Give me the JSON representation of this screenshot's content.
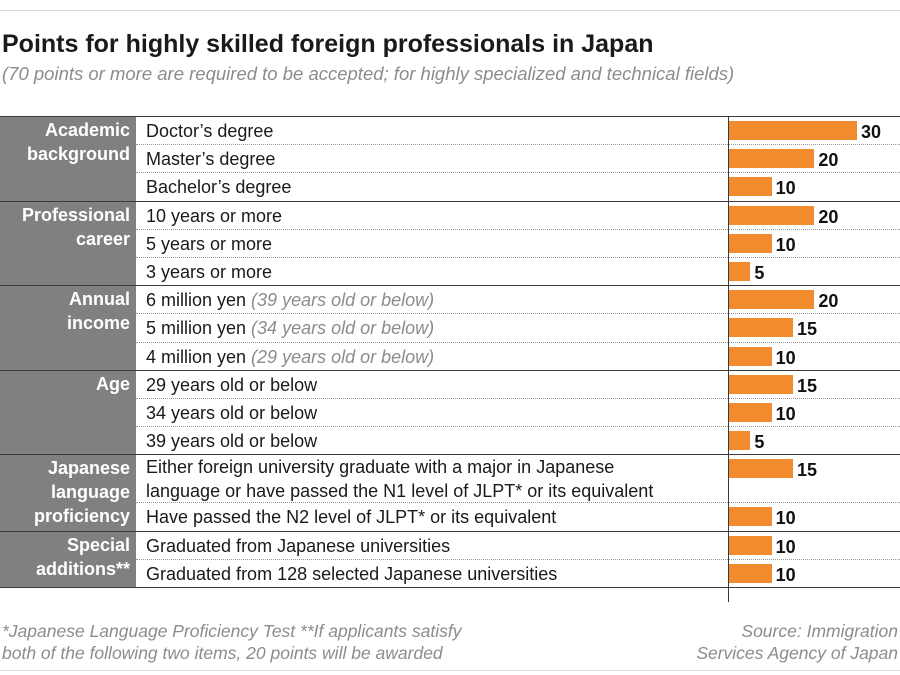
{
  "title": "Points for highly skilled foreign professionals in Japan",
  "subtitle": "(70 points or more are required to be accepted; for highly specialized and technical fields)",
  "footnote": {
    "line1": "*Japanese Language Proficiency Test  **If applicants satisfy",
    "line2": "both of the following two items, 20 points will be awarded"
  },
  "source": {
    "line1": "Source: Immigration",
    "line2": "Services Agency of Japan"
  },
  "colors": {
    "bar": "#f28a2e",
    "category_bg": "#808080"
  },
  "chart_data": {
    "type": "bar",
    "orientation": "horizontal",
    "xlim": [
      0,
      30
    ],
    "groups": [
      {
        "category": [
          "Academic",
          "background"
        ],
        "rows": [
          {
            "label": "Doctor’s degree",
            "value": 30
          },
          {
            "label": "Master’s degree",
            "value": 20
          },
          {
            "label": "Bachelor’s degree",
            "value": 10
          }
        ]
      },
      {
        "category": [
          "Professional",
          "career"
        ],
        "rows": [
          {
            "label": "10 years or more",
            "value": 20
          },
          {
            "label": "5 years or more",
            "value": 10
          },
          {
            "label": "3 years or more",
            "value": 5
          }
        ]
      },
      {
        "category": [
          "Annual",
          "income"
        ],
        "rows": [
          {
            "label": "6 million yen",
            "note": "(39 years old or below)",
            "value": 20
          },
          {
            "label": "5 million yen",
            "note": "(34 years old or below)",
            "value": 15
          },
          {
            "label": "4 million yen",
            "note": "(29 years old or below)",
            "value": 10
          }
        ]
      },
      {
        "category": [
          "Age"
        ],
        "rows": [
          {
            "label": "29 years old or below",
            "value": 15
          },
          {
            "label": "34 years old or below",
            "value": 10
          },
          {
            "label": "39 years old or below",
            "value": 5
          }
        ]
      },
      {
        "category": [
          "Japanese",
          "language",
          "proficiency"
        ],
        "rows": [
          {
            "label": "Either foreign university graduate with a major in Japanese",
            "label2": "language or have passed the N1 level of JLPT* or its equivalent",
            "value": 15
          },
          {
            "label": "Have passed the N2 level of JLPT* or its equivalent",
            "value": 10
          }
        ]
      },
      {
        "category": [
          "Special",
          "additions**"
        ],
        "rows": [
          {
            "label": "Graduated from Japanese universities",
            "value": 10
          },
          {
            "label": "Graduated from 128 selected Japanese universities",
            "value": 10
          }
        ]
      }
    ]
  }
}
